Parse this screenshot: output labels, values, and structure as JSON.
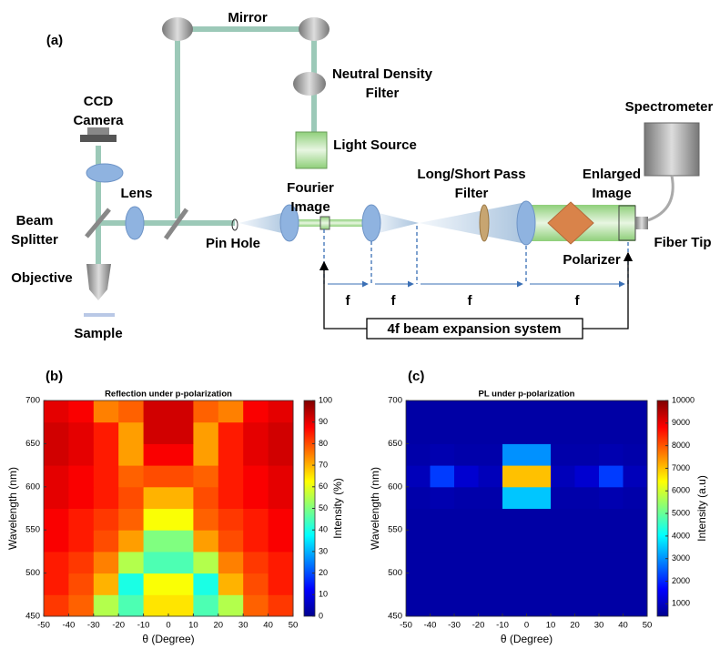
{
  "diagram": {
    "panel_label": "(a)",
    "mirror": "Mirror",
    "neutral_density_filter": [
      "Neutral Density",
      "Filter"
    ],
    "light_source": "Light Source",
    "spectrometer": "Spectrometer",
    "ccd_camera": [
      "CCD",
      "Camera"
    ],
    "lens": "Lens",
    "beam_splitter": [
      "Beam",
      "Splitter"
    ],
    "pin_hole": "Pin Hole",
    "fourier_image": [
      "Fourier",
      "Image"
    ],
    "long_short_pass_filter": [
      "Long/Short Pass",
      "Filter"
    ],
    "enlarged_image": [
      "Enlarged",
      "Image"
    ],
    "fiber_tip": "Fiber Tip",
    "polarizer": "Polarizer",
    "objective": "Objective",
    "sample": "Sample",
    "focal_lengths": [
      "f",
      "f",
      "f",
      "f"
    ],
    "expansion_system": "4f beam expansion system"
  },
  "chart_data": [
    {
      "type": "heatmap",
      "panel_label": "(b)",
      "title": "Reflection under p-polarization",
      "xlabel": "θ (Degree)",
      "ylabel": "Wavelength (nm)",
      "colorbar_label": "Intensity (%)",
      "colormap": "jet",
      "x": [
        -45,
        -35,
        -25,
        -15,
        -5,
        5,
        15,
        25,
        35,
        45
      ],
      "y": [
        462.5,
        487.5,
        512.5,
        537.5,
        562.5,
        587.5,
        612.5,
        637.5,
        662.5,
        687.5
      ],
      "z": [
        [
          82,
          78,
          55,
          45,
          65,
          65,
          45,
          55,
          78,
          82
        ],
        [
          85,
          80,
          70,
          40,
          62,
          62,
          40,
          70,
          80,
          85
        ],
        [
          85,
          82,
          75,
          55,
          45,
          45,
          55,
          75,
          82,
          85
        ],
        [
          88,
          85,
          80,
          72,
          50,
          50,
          72,
          80,
          85,
          88
        ],
        [
          88,
          85,
          82,
          78,
          62,
          62,
          78,
          82,
          85,
          88
        ],
        [
          90,
          88,
          85,
          80,
          70,
          70,
          80,
          85,
          88,
          90
        ],
        [
          90,
          88,
          85,
          78,
          80,
          80,
          78,
          85,
          88,
          90
        ],
        [
          92,
          90,
          85,
          72,
          88,
          88,
          72,
          85,
          90,
          92
        ],
        [
          92,
          90,
          85,
          72,
          92,
          92,
          72,
          85,
          90,
          92
        ],
        [
          90,
          88,
          75,
          78,
          92,
          92,
          78,
          75,
          88,
          90
        ]
      ],
      "xlim": [
        -50,
        50
      ],
      "ylim": [
        450,
        700
      ],
      "xticks": [
        -50,
        -40,
        -30,
        -20,
        -10,
        0,
        10,
        20,
        30,
        40,
        50
      ],
      "yticks": [
        450,
        500,
        550,
        600,
        650,
        700
      ],
      "clim": [
        0,
        100
      ],
      "cticks": [
        0,
        10,
        20,
        30,
        40,
        50,
        60,
        70,
        80,
        90,
        100
      ]
    },
    {
      "type": "heatmap",
      "panel_label": "(c)",
      "title": "PL under p-polarization",
      "xlabel": "θ (Degree)",
      "ylabel": "Wavelength (nm)",
      "colorbar_label": "Intensity (a.u)",
      "colormap": "jet",
      "x": [
        -45,
        -35,
        -25,
        -15,
        -5,
        5,
        15,
        25,
        35,
        45
      ],
      "y": [
        462.5,
        487.5,
        512.5,
        537.5,
        562.5,
        587.5,
        612.5,
        637.5,
        662.5,
        687.5
      ],
      "z": [
        [
          800,
          800,
          800,
          800,
          800,
          800,
          800,
          800,
          800,
          800
        ],
        [
          800,
          800,
          800,
          800,
          800,
          800,
          800,
          800,
          800,
          800
        ],
        [
          800,
          800,
          800,
          800,
          800,
          800,
          800,
          800,
          800,
          800
        ],
        [
          800,
          800,
          800,
          800,
          800,
          800,
          800,
          800,
          800,
          800
        ],
        [
          800,
          800,
          800,
          800,
          800,
          800,
          800,
          800,
          800,
          800
        ],
        [
          850,
          900,
          850,
          850,
          3500,
          3500,
          850,
          850,
          900,
          850
        ],
        [
          1000,
          2200,
          1200,
          1000,
          7000,
          7000,
          1000,
          1200,
          2200,
          1000
        ],
        [
          850,
          900,
          850,
          850,
          3000,
          3000,
          850,
          850,
          900,
          850
        ],
        [
          800,
          800,
          800,
          800,
          800,
          800,
          800,
          800,
          800,
          800
        ],
        [
          800,
          800,
          800,
          800,
          800,
          800,
          800,
          800,
          800,
          800
        ]
      ],
      "xlim": [
        -50,
        50
      ],
      "ylim": [
        450,
        700
      ],
      "xticks": [
        -50,
        -40,
        -30,
        -20,
        -10,
        0,
        10,
        20,
        30,
        40,
        50
      ],
      "yticks": [
        450,
        500,
        550,
        600,
        650,
        700
      ],
      "clim": [
        450,
        10000
      ],
      "cticks": [
        1000,
        2000,
        3000,
        4000,
        5000,
        6000,
        7000,
        8000,
        9000,
        10000
      ]
    }
  ]
}
